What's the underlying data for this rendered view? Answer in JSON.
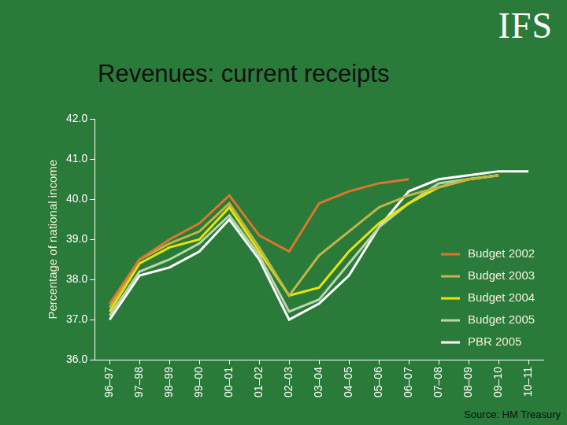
{
  "chart_data": {
    "type": "line",
    "title": "Revenues: current receipts",
    "logo": "IFS",
    "source": "Source: HM Treasury",
    "y_label": "Percentage of national income",
    "categories": [
      "96–97",
      "97–98",
      "98–99",
      "99–00",
      "00–01",
      "01–02",
      "02–03",
      "03–04",
      "04–05",
      "05–06",
      "06–07",
      "07–08",
      "08–09",
      "09–10",
      "10–11"
    ],
    "series": [
      {
        "name": "Budget 2002",
        "color": "#d9782d",
        "values": [
          37.4,
          38.5,
          39.0,
          39.4,
          40.1,
          39.1,
          38.7,
          39.9,
          40.2,
          40.4,
          40.5,
          null,
          null,
          null,
          null
        ]
      },
      {
        "name": "Budget 2003",
        "color": "#c2b548",
        "values": [
          37.3,
          38.5,
          38.9,
          39.2,
          39.9,
          38.8,
          37.6,
          38.6,
          39.2,
          39.8,
          40.1,
          40.3,
          40.5,
          40.6,
          null
        ]
      },
      {
        "name": "Budget 2004",
        "color": "#e8e40a",
        "values": [
          37.2,
          38.4,
          38.8,
          39.0,
          39.8,
          38.7,
          37.6,
          37.8,
          38.7,
          39.4,
          39.9,
          40.3,
          40.5,
          40.6,
          null
        ]
      },
      {
        "name": "Budget 2005",
        "color": "#b9d6a8",
        "values": [
          37.1,
          38.2,
          38.5,
          38.9,
          39.6,
          38.6,
          37.2,
          37.5,
          38.4,
          39.3,
          39.9,
          40.4,
          40.5,
          40.6,
          null
        ]
      },
      {
        "name": "PBR 2005",
        "color": "#ffffff",
        "values": [
          37.0,
          38.1,
          38.3,
          38.7,
          39.5,
          38.5,
          37.0,
          37.4,
          38.1,
          39.3,
          40.2,
          40.5,
          40.6,
          40.7,
          40.7
        ]
      }
    ],
    "ylim": [
      36,
      42
    ],
    "yticks": [
      {
        "value": 36,
        "label": "36.0"
      },
      {
        "value": 37,
        "label": "37.0"
      },
      {
        "value": 38,
        "label": "38.0"
      },
      {
        "value": 39,
        "label": "39.0"
      },
      {
        "value": 40,
        "label": "40.0"
      },
      {
        "value": 41,
        "label": "41.0"
      },
      {
        "value": 42,
        "label": "42.0"
      }
    ],
    "grid": false,
    "legend": "lower right"
  }
}
